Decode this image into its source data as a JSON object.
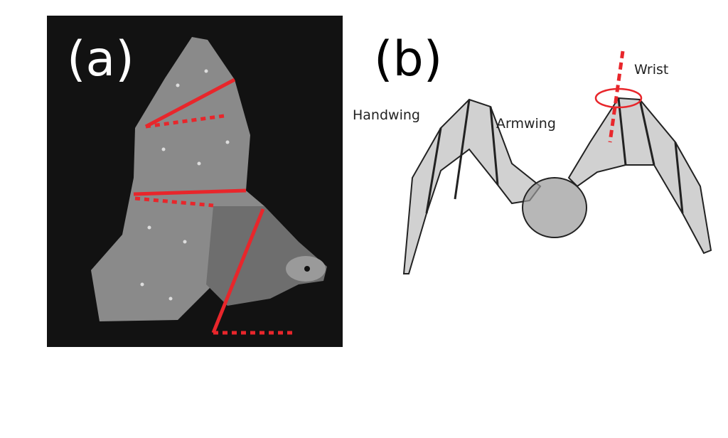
{
  "panels": [
    {
      "label": "(a)"
    },
    {
      "label": "(b)",
      "annotations": [
        "Handwing",
        "Armwing",
        "Wrist"
      ]
    }
  ]
}
